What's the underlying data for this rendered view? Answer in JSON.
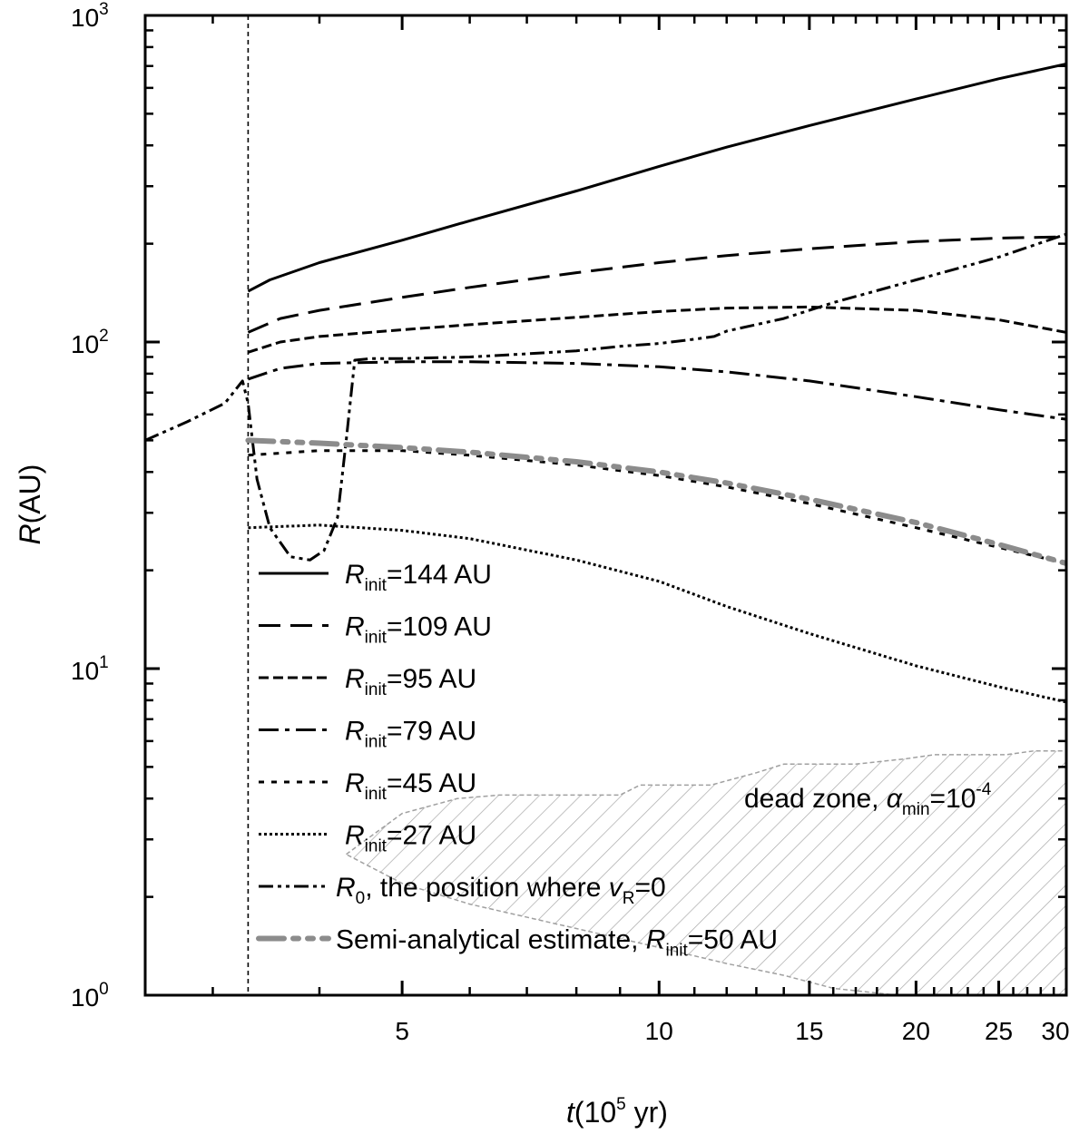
{
  "chart_data": {
    "type": "line",
    "xscale": "log",
    "yscale": "log",
    "xlim": [
      2.5,
      30
    ],
    "ylim": [
      1,
      1000
    ],
    "xlabel": {
      "italic": "t",
      "text": "(10",
      "sup": "5",
      "tail": " yr)"
    },
    "ylabel": {
      "italic": "R",
      "text": "(AU)"
    },
    "xticks": [
      {
        "value": 5,
        "label": "5"
      },
      {
        "value": 10,
        "label": "10"
      },
      {
        "value": 15,
        "label": "15"
      },
      {
        "value": 20,
        "label": "20"
      },
      {
        "value": 25,
        "label": "25"
      },
      {
        "value": 30,
        "label": "30"
      }
    ],
    "yticks": [
      {
        "value": 1,
        "base": "10",
        "exp": "0"
      },
      {
        "value": 10,
        "base": "10",
        "exp": "1"
      },
      {
        "value": 100,
        "base": "10",
        "exp": "2"
      },
      {
        "value": 1000,
        "base": "10",
        "exp": "3"
      }
    ],
    "vertical_line": {
      "x": 3.3
    },
    "series": [
      {
        "name": "R_init=144 AU",
        "legend": {
          "sym": "R",
          "sub": "init",
          "rest": "=144 AU"
        },
        "style": "solid",
        "color": "#000000",
        "width": 3,
        "x": [
          3.3,
          3.5,
          4,
          5,
          6,
          8,
          10,
          12,
          15,
          20,
          25,
          30
        ],
        "y": [
          143,
          155,
          175,
          205,
          235,
          290,
          345,
          395,
          460,
          555,
          640,
          710
        ]
      },
      {
        "name": "R_init=109 AU",
        "legend": {
          "sym": "R",
          "sub": "init",
          "rest": "=109 AU"
        },
        "style": "dash",
        "color": "#000000",
        "width": 3,
        "x": [
          3.3,
          3.6,
          4,
          5,
          6,
          8,
          10,
          12,
          15,
          20,
          25,
          30
        ],
        "y": [
          107,
          118,
          125,
          137,
          147,
          163,
          175,
          184,
          193,
          203,
          208,
          210
        ]
      },
      {
        "name": "R_init=95 AU",
        "legend": {
          "sym": "R",
          "sub": "init",
          "rest": "=95 AU"
        },
        "style": "shortdash",
        "color": "#000000",
        "width": 3,
        "x": [
          3.3,
          3.6,
          4,
          5,
          6,
          8,
          10,
          12,
          15,
          20,
          25,
          30
        ],
        "y": [
          93,
          100,
          104,
          109,
          113,
          119,
          124,
          127,
          128,
          125,
          117,
          107
        ]
      },
      {
        "name": "R_init=79 AU",
        "legend": {
          "sym": "R",
          "sub": "init",
          "rest": "=79 AU"
        },
        "style": "dashdot",
        "color": "#000000",
        "width": 3,
        "x": [
          3.3,
          3.6,
          4,
          5,
          6,
          8,
          10,
          12,
          15,
          20,
          25,
          30
        ],
        "y": [
          77,
          83,
          86,
          87,
          87,
          86,
          84,
          81,
          76,
          68,
          62,
          58
        ]
      },
      {
        "name": "R_init=45 AU",
        "legend": {
          "sym": "R",
          "sub": "init",
          "rest": "=45 AU"
        },
        "style": "dot",
        "color": "#000000",
        "width": 3,
        "x": [
          3.3,
          4,
          5,
          6,
          8,
          10,
          12,
          15,
          20,
          25,
          30
        ],
        "y": [
          45,
          46.5,
          46.5,
          45,
          42,
          39,
          36,
          32,
          27,
          23.5,
          21
        ]
      },
      {
        "name": "R_init=27 AU",
        "legend": {
          "sym": "R",
          "sub": "init",
          "rest": "=27 AU"
        },
        "style": "finedot",
        "color": "#000000",
        "width": 3,
        "x": [
          3.3,
          4,
          5,
          6,
          8,
          10,
          12,
          15,
          20,
          25,
          30
        ],
        "y": [
          27,
          27.5,
          26.5,
          25,
          21.5,
          18.5,
          15.5,
          12.8,
          10.2,
          8.8,
          7.9
        ]
      },
      {
        "name": "R_0, the position where v_R=0",
        "legend": {
          "sym": "R",
          "sub": "0",
          "rest": ", the position where ",
          "sym2": "v",
          "sub2": "R",
          "rest2": "=0"
        },
        "style": "dashdotdot",
        "color": "#000000",
        "width": 3,
        "x": [
          2.5,
          2.8,
          3.1,
          3.25,
          3.3,
          3.38,
          3.5,
          3.7,
          3.9,
          4.05,
          4.2,
          4.3,
          4.4,
          4.6,
          5,
          6,
          7,
          8,
          9,
          10,
          11,
          11.6,
          12,
          14,
          16,
          20,
          25,
          30
        ],
        "y": [
          50,
          57,
          65,
          76,
          65,
          38,
          27,
          22,
          21.5,
          23,
          29,
          50,
          88,
          89,
          89,
          90,
          92,
          94,
          97,
          99,
          102,
          104,
          108,
          118,
          132,
          155,
          182,
          214
        ]
      },
      {
        "name": "Semi-analytical estimate, R_init=50 AU",
        "legend": {
          "rest": "Semi-analytical estimate, ",
          "sym": "R",
          "sub": "init",
          "rest2": "=50 AU"
        },
        "style": "semi",
        "color": "#8c8c8c",
        "width": 6,
        "x": [
          3.3,
          4,
          5,
          6,
          8,
          10,
          12,
          15,
          20,
          25,
          30
        ],
        "y": [
          50,
          49,
          47.5,
          46,
          43,
          40,
          37,
          33,
          28,
          24,
          21
        ]
      }
    ],
    "region": {
      "label": {
        "text": "dead zone, ",
        "sym": "α",
        "sub": "min",
        "rest": "=10",
        "sup": "-4"
      },
      "upper": {
        "x": [
          4.3,
          5,
          5.8,
          6.5,
          8,
          9,
          9.5,
          11.5,
          13,
          14,
          17,
          19.5,
          21,
          25.5,
          27.5,
          30
        ],
        "y": [
          2.7,
          3.6,
          4.0,
          4.1,
          4.1,
          4.1,
          4.4,
          4.4,
          4.8,
          5.1,
          5.1,
          5.3,
          5.45,
          5.45,
          5.6,
          5.6
        ]
      },
      "lower": {
        "x": [
          30,
          19,
          16,
          14,
          12,
          10,
          8,
          6,
          5,
          4.3
        ],
        "y": [
          1.0,
          1.0,
          1.05,
          1.15,
          1.25,
          1.4,
          1.6,
          1.9,
          2.2,
          2.7
        ]
      }
    }
  }
}
